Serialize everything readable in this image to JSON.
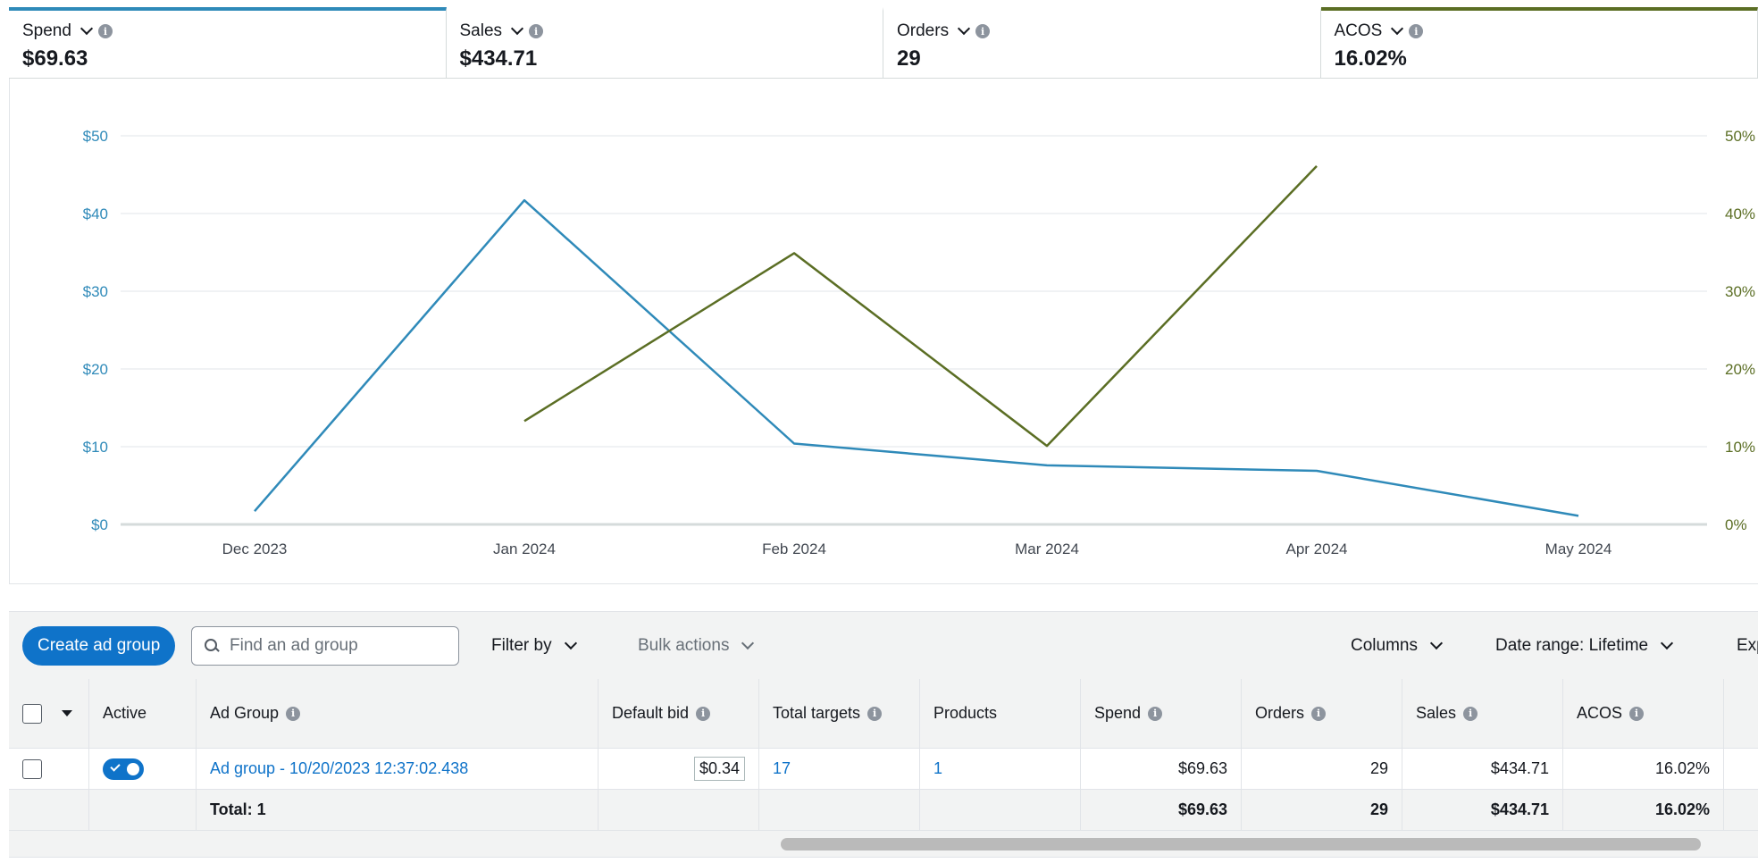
{
  "metrics": [
    {
      "label": "Spend",
      "value": "$69.63",
      "accent": "#2f8ab9"
    },
    {
      "label": "Sales",
      "value": "$434.71"
    },
    {
      "label": "Orders",
      "value": "29"
    },
    {
      "label": "ACOS",
      "value": "16.02%",
      "accent": "#5b6e24"
    }
  ],
  "chart_data": {
    "type": "line",
    "x": [
      "Dec 2023",
      "Jan 2024",
      "Feb 2024",
      "Mar 2024",
      "Apr 2024",
      "May 2024"
    ],
    "series": [
      {
        "name": "Spend",
        "axis": "left",
        "color": "#2f8ab9",
        "values": [
          1.7,
          41.7,
          10.4,
          7.6,
          6.9,
          1.1
        ]
      },
      {
        "name": "ACOS",
        "axis": "right",
        "color": "#5b6e24",
        "values": [
          null,
          13.3,
          34.9,
          10.1,
          46.1,
          null
        ]
      }
    ],
    "left_axis": {
      "ticks": [
        "$0",
        "$10",
        "$20",
        "$30",
        "$40",
        "$50"
      ],
      "ylim": [
        0,
        50
      ],
      "color": "#2f8ab9"
    },
    "right_axis": {
      "ticks": [
        "0%",
        "10%",
        "20%",
        "30%",
        "40%",
        "50%"
      ],
      "ylim": [
        0,
        50
      ],
      "color": "#5b6e24"
    },
    "grid": true
  },
  "toolbar": {
    "create_label": "Create ad group",
    "search_placeholder": "Find an ad group",
    "filter_label": "Filter by",
    "bulk_label": "Bulk actions",
    "columns_label": "Columns",
    "date_range_label": "Date range: Lifetime",
    "export_label": "Exp"
  },
  "table": {
    "headers": {
      "active": "Active",
      "ad_group": "Ad Group",
      "default_bid": "Default bid",
      "total_targets": "Total targets",
      "products": "Products",
      "spend": "Spend",
      "orders": "Orders",
      "sales": "Sales",
      "acos": "ACOS"
    },
    "row": {
      "ad_group": "Ad group - 10/20/2023 12:37:02.438",
      "default_bid": "$0.34",
      "total_targets": "17",
      "products": "1",
      "spend": "$69.63",
      "orders": "29",
      "sales": "$434.71",
      "acos": "16.02%"
    },
    "total": {
      "label": "Total: 1",
      "spend": "$69.63",
      "orders": "29",
      "sales": "$434.71",
      "acos": "16.02%"
    }
  }
}
